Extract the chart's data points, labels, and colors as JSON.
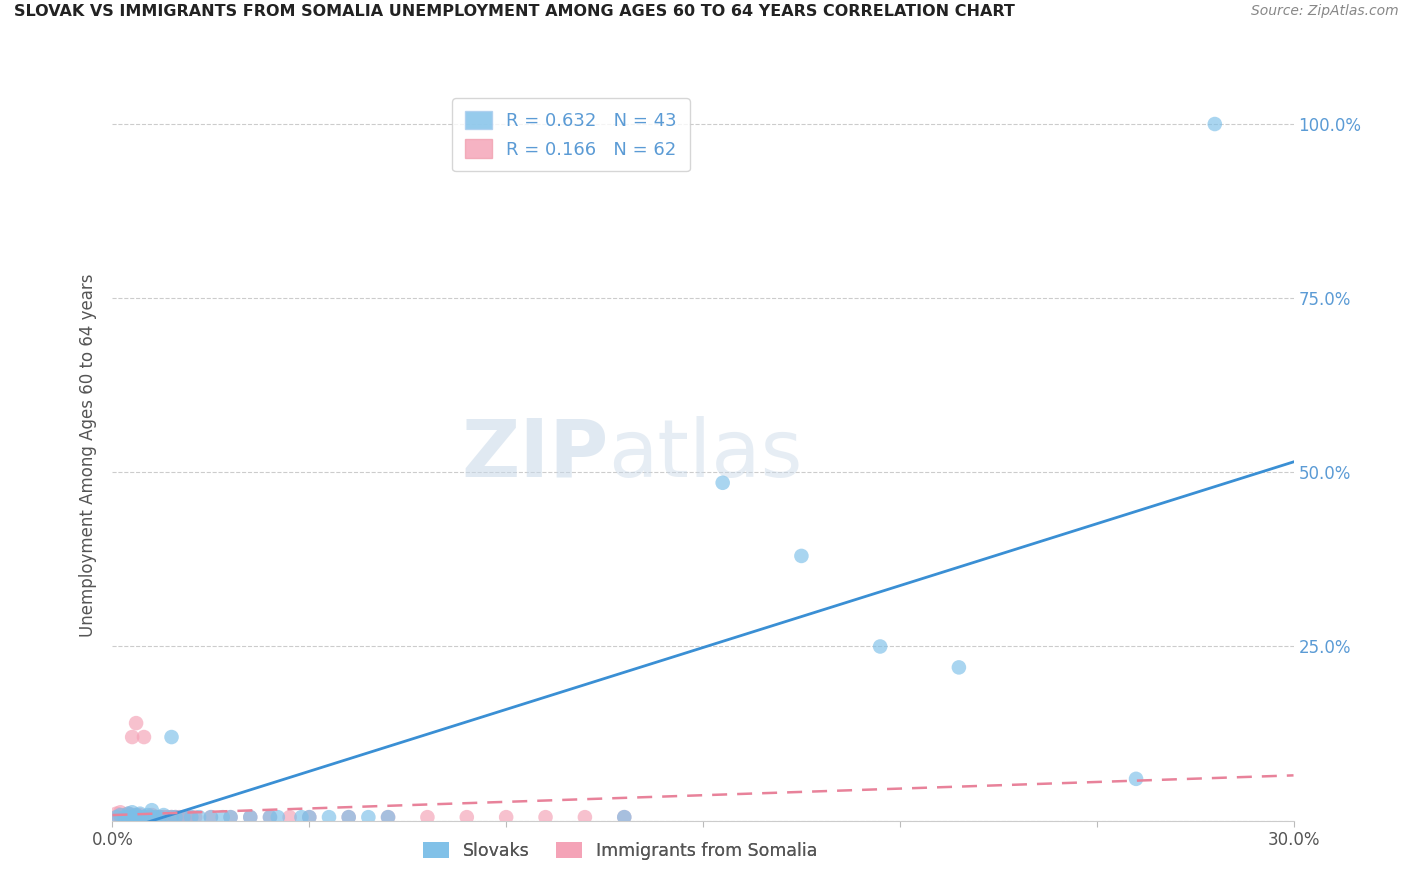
{
  "title": "SLOVAK VS IMMIGRANTS FROM SOMALIA UNEMPLOYMENT AMONG AGES 60 TO 64 YEARS CORRELATION CHART",
  "source": "Source: ZipAtlas.com",
  "ylabel": "Unemployment Among Ages 60 to 64 years",
  "xlim": [
    0.0,
    0.3
  ],
  "ylim": [
    0.0,
    1.05
  ],
  "xticks": [
    0.0,
    0.05,
    0.1,
    0.15,
    0.2,
    0.25,
    0.3
  ],
  "xticklabels": [
    "0.0%",
    "",
    "",
    "",
    "",
    "",
    "30.0%"
  ],
  "ytick_positions": [
    0.0,
    0.25,
    0.5,
    0.75,
    1.0
  ],
  "yticklabels": [
    "",
    "25.0%",
    "50.0%",
    "75.0%",
    "100.0%"
  ],
  "slovak_color": "#7cbfe8",
  "somalia_color": "#f4a0b5",
  "slovak_trend_color": "#3a8fd4",
  "somalia_trend_color": "#e8829a",
  "watermark_zip": "ZIP",
  "watermark_atlas": "atlas",
  "slovak_R": 0.632,
  "slovak_N": 43,
  "somalia_R": 0.166,
  "somalia_N": 62,
  "slovak_trend_x": [
    0.0,
    0.3
  ],
  "slovak_trend_y": [
    -0.018,
    0.515
  ],
  "somalia_trend_x": [
    0.0,
    0.3
  ],
  "somalia_trend_y": [
    0.008,
    0.065
  ],
  "slovak_points": [
    [
      0.001,
      0.005
    ],
    [
      0.002,
      0.008
    ],
    [
      0.003,
      0.005
    ],
    [
      0.004,
      0.01
    ],
    [
      0.004,
      0.005
    ],
    [
      0.005,
      0.005
    ],
    [
      0.005,
      0.012
    ],
    [
      0.006,
      0.005
    ],
    [
      0.006,
      0.008
    ],
    [
      0.007,
      0.005
    ],
    [
      0.007,
      0.01
    ],
    [
      0.008,
      0.005
    ],
    [
      0.009,
      0.008
    ],
    [
      0.01,
      0.005
    ],
    [
      0.01,
      0.015
    ],
    [
      0.011,
      0.005
    ],
    [
      0.012,
      0.005
    ],
    [
      0.013,
      0.008
    ],
    [
      0.015,
      0.005
    ],
    [
      0.015,
      0.12
    ],
    [
      0.016,
      0.005
    ],
    [
      0.018,
      0.005
    ],
    [
      0.02,
      0.005
    ],
    [
      0.022,
      0.005
    ],
    [
      0.025,
      0.005
    ],
    [
      0.028,
      0.005
    ],
    [
      0.03,
      0.005
    ],
    [
      0.035,
      0.005
    ],
    [
      0.04,
      0.005
    ],
    [
      0.042,
      0.005
    ],
    [
      0.048,
      0.005
    ],
    [
      0.05,
      0.005
    ],
    [
      0.055,
      0.005
    ],
    [
      0.06,
      0.005
    ],
    [
      0.065,
      0.005
    ],
    [
      0.07,
      0.005
    ],
    [
      0.13,
      0.005
    ],
    [
      0.155,
      0.485
    ],
    [
      0.175,
      0.38
    ],
    [
      0.195,
      0.25
    ],
    [
      0.215,
      0.22
    ],
    [
      0.26,
      0.06
    ],
    [
      0.28,
      1.0
    ]
  ],
  "somalia_points": [
    [
      0.001,
      0.005
    ],
    [
      0.001,
      0.01
    ],
    [
      0.002,
      0.005
    ],
    [
      0.002,
      0.008
    ],
    [
      0.002,
      0.012
    ],
    [
      0.002,
      0.005
    ],
    [
      0.003,
      0.005
    ],
    [
      0.003,
      0.008
    ],
    [
      0.003,
      0.005
    ],
    [
      0.004,
      0.005
    ],
    [
      0.004,
      0.01
    ],
    [
      0.004,
      0.008
    ],
    [
      0.004,
      0.005
    ],
    [
      0.005,
      0.005
    ],
    [
      0.005,
      0.008
    ],
    [
      0.005,
      0.005
    ],
    [
      0.005,
      0.12
    ],
    [
      0.006,
      0.005
    ],
    [
      0.006,
      0.008
    ],
    [
      0.006,
      0.14
    ],
    [
      0.007,
      0.005
    ],
    [
      0.007,
      0.005
    ],
    [
      0.007,
      0.008
    ],
    [
      0.008,
      0.005
    ],
    [
      0.008,
      0.005
    ],
    [
      0.008,
      0.12
    ],
    [
      0.009,
      0.005
    ],
    [
      0.009,
      0.005
    ],
    [
      0.01,
      0.005
    ],
    [
      0.01,
      0.005
    ],
    [
      0.01,
      0.008
    ],
    [
      0.011,
      0.005
    ],
    [
      0.011,
      0.005
    ],
    [
      0.012,
      0.005
    ],
    [
      0.012,
      0.005
    ],
    [
      0.013,
      0.005
    ],
    [
      0.013,
      0.005
    ],
    [
      0.014,
      0.005
    ],
    [
      0.014,
      0.005
    ],
    [
      0.015,
      0.005
    ],
    [
      0.015,
      0.005
    ],
    [
      0.016,
      0.005
    ],
    [
      0.016,
      0.005
    ],
    [
      0.017,
      0.005
    ],
    [
      0.018,
      0.005
    ],
    [
      0.019,
      0.005
    ],
    [
      0.02,
      0.005
    ],
    [
      0.021,
      0.005
    ],
    [
      0.025,
      0.005
    ],
    [
      0.03,
      0.005
    ],
    [
      0.035,
      0.005
    ],
    [
      0.04,
      0.005
    ],
    [
      0.045,
      0.005
    ],
    [
      0.05,
      0.005
    ],
    [
      0.06,
      0.005
    ],
    [
      0.07,
      0.005
    ],
    [
      0.08,
      0.005
    ],
    [
      0.09,
      0.005
    ],
    [
      0.1,
      0.005
    ],
    [
      0.11,
      0.005
    ],
    [
      0.12,
      0.005
    ],
    [
      0.13,
      0.005
    ]
  ]
}
